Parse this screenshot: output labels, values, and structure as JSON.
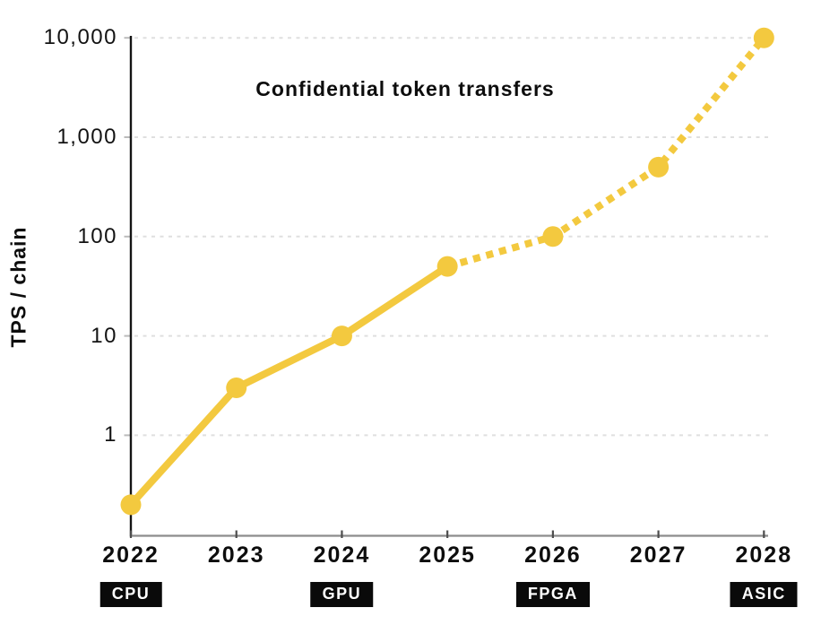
{
  "chart_data": {
    "type": "line",
    "title": "Confidential token transfers",
    "ylabel": "TPS / chain",
    "xlabel": "",
    "x_categories": [
      "2022",
      "2023",
      "2024",
      "2025",
      "2026",
      "2027",
      "2028"
    ],
    "series": [
      {
        "name": "Confidential token transfers TPS per chain",
        "values": [
          0.2,
          3,
          10,
          50,
          100,
          500,
          10000
        ],
        "solid_until_index": 3,
        "line_style": "solid through 2025, dotted projection 2025-2028",
        "color": "#F3C93F"
      }
    ],
    "y_scale": "log",
    "ylim": [
      0.1,
      10000
    ],
    "y_ticks": [
      {
        "label": "10,000",
        "value": 10000
      },
      {
        "label": "1,000",
        "value": 1000
      },
      {
        "label": "100",
        "value": 100
      },
      {
        "label": "10",
        "value": 10
      },
      {
        "label": "1",
        "value": 1
      }
    ],
    "grid": "horizontal dashed",
    "legend": "none",
    "hardware_badges": [
      {
        "category": "2022",
        "label": "CPU"
      },
      {
        "category": "2024",
        "label": "GPU"
      },
      {
        "category": "2026",
        "label": "FPGA"
      },
      {
        "category": "2028",
        "label": "ASIC"
      }
    ],
    "colors": {
      "line": "#F3C93F",
      "marker": "#F3C93F",
      "grid": "#DFDFDF",
      "x_axis": "#8C8C8C",
      "y_axis": "#141414",
      "x_tick": "#4D4D4D",
      "y_tick": "#BBBBBB",
      "text": "#0D0D0D",
      "badge_bg": "#0A0A0A",
      "badge_text": "#FFFFFF",
      "background": "#FFFFFF"
    }
  }
}
